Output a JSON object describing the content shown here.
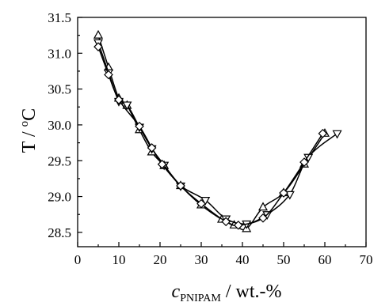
{
  "chart_data": {
    "type": "line",
    "title": "",
    "ylabel_main": "T / ",
    "ylabel_degree": "o",
    "ylabel_unit": "C",
    "xlabel_symbol": "c",
    "xlabel_subscript": "PNIPAM",
    "xlabel_unit": " / wt.-%",
    "xlim": [
      0,
      70
    ],
    "ylim": [
      28.3,
      31.5
    ],
    "xticks": [
      0,
      10,
      20,
      30,
      40,
      50,
      60,
      70
    ],
    "yticks": [
      28.5,
      29.0,
      29.5,
      30.0,
      30.5,
      31.0,
      31.5
    ],
    "ytick_labels": [
      "28.5",
      "29.0",
      "29.5",
      "30.0",
      "30.5",
      "31.0",
      "31.5"
    ],
    "grid": false,
    "legend": "none",
    "series": [
      {
        "marker": "triangle-up",
        "x": [
          5,
          7.5,
          10,
          12,
          15,
          18,
          21,
          25,
          30,
          35,
          38,
          41,
          45,
          50,
          55,
          60
        ],
        "y": [
          31.25,
          30.8,
          30.37,
          30.27,
          29.93,
          29.62,
          29.43,
          29.15,
          28.88,
          28.68,
          28.6,
          28.55,
          28.85,
          29.05,
          29.45,
          29.88
        ]
      },
      {
        "marker": "triangle-down",
        "x": [
          5,
          7.5,
          10,
          12,
          15,
          18,
          21,
          25,
          31,
          36,
          41,
          46,
          51.5,
          56,
          63
        ],
        "y": [
          31.15,
          30.73,
          30.33,
          30.28,
          29.97,
          29.67,
          29.44,
          29.15,
          28.95,
          28.69,
          28.62,
          28.75,
          29.03,
          29.55,
          29.88
        ]
      },
      {
        "marker": "diamond",
        "x": [
          5,
          7.5,
          10,
          15,
          18,
          20.5,
          25,
          30,
          36,
          39,
          45,
          50,
          55,
          59.5
        ],
        "y": [
          31.09,
          30.7,
          30.35,
          29.98,
          29.68,
          29.45,
          29.15,
          28.9,
          28.65,
          28.6,
          28.7,
          29.05,
          29.48,
          29.88
        ]
      }
    ]
  }
}
